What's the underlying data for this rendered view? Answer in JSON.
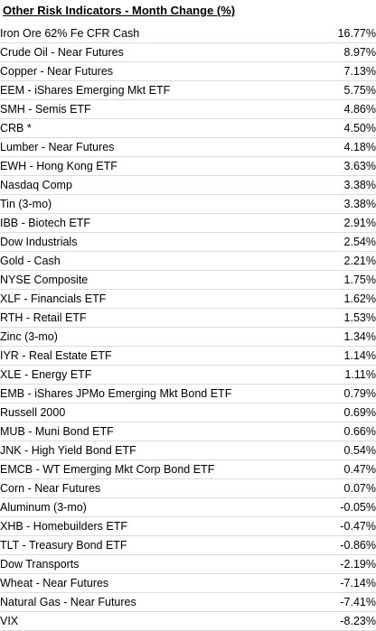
{
  "title": "Other Risk Indicators  - Month Change (%)",
  "rows": [
    {
      "name": "Iron Ore 62% Fe CFR Cash",
      "value": "16.77%"
    },
    {
      "name": "Crude Oil - Near Futures",
      "value": "8.97%"
    },
    {
      "name": "Copper - Near Futures",
      "value": "7.13%"
    },
    {
      "name": "EEM - iShares Emerging Mkt ETF",
      "value": "5.75%"
    },
    {
      "name": "SMH - Semis ETF",
      "value": "4.86%"
    },
    {
      "name": "CRB *",
      "value": "4.50%"
    },
    {
      "name": "Lumber - Near Futures",
      "value": "4.18%"
    },
    {
      "name": "EWH - Hong Kong ETF",
      "value": "3.63%"
    },
    {
      "name": "Nasdaq Comp",
      "value": "3.38%"
    },
    {
      "name": "Tin (3-mo)",
      "value": "3.38%"
    },
    {
      "name": "IBB - Biotech ETF",
      "value": "2.91%"
    },
    {
      "name": "Dow Industrials",
      "value": "2.54%"
    },
    {
      "name": "Gold - Cash",
      "value": "2.21%"
    },
    {
      "name": "NYSE Composite",
      "value": "1.75%"
    },
    {
      "name": "XLF - Financials ETF",
      "value": "1.62%"
    },
    {
      "name": "RTH - Retail ETF",
      "value": "1.53%"
    },
    {
      "name": "Zinc (3-mo)",
      "value": "1.34%"
    },
    {
      "name": "IYR - Real Estate ETF",
      "value": "1.14%"
    },
    {
      "name": "XLE - Energy ETF",
      "value": "1.11%"
    },
    {
      "name": "EMB - iShares JPMo Emerging Mkt Bond ETF",
      "value": "0.79%"
    },
    {
      "name": "Russell 2000",
      "value": "0.69%"
    },
    {
      "name": "MUB - Muni Bond ETF",
      "value": "0.66%"
    },
    {
      "name": "JNK - High Yield Bond ETF",
      "value": "0.54%"
    },
    {
      "name": "EMCB - WT Emerging Mkt Corp Bond ETF",
      "value": "0.47%"
    },
    {
      "name": "Corn - Near Futures",
      "value": "0.07%"
    },
    {
      "name": "Aluminum (3-mo)",
      "value": "-0.05%"
    },
    {
      "name": "XHB - Homebuilders ETF",
      "value": "-0.47%"
    },
    {
      "name": "TLT - Treasury Bond ETF",
      "value": "-0.86%"
    },
    {
      "name": "Dow Transports",
      "value": "-2.19%"
    },
    {
      "name": "Wheat - Near Futures",
      "value": "-7.14%"
    },
    {
      "name": "Natural Gas - Near Futures",
      "value": "-7.41%"
    },
    {
      "name": "VIX",
      "value": "-8.23%"
    }
  ]
}
